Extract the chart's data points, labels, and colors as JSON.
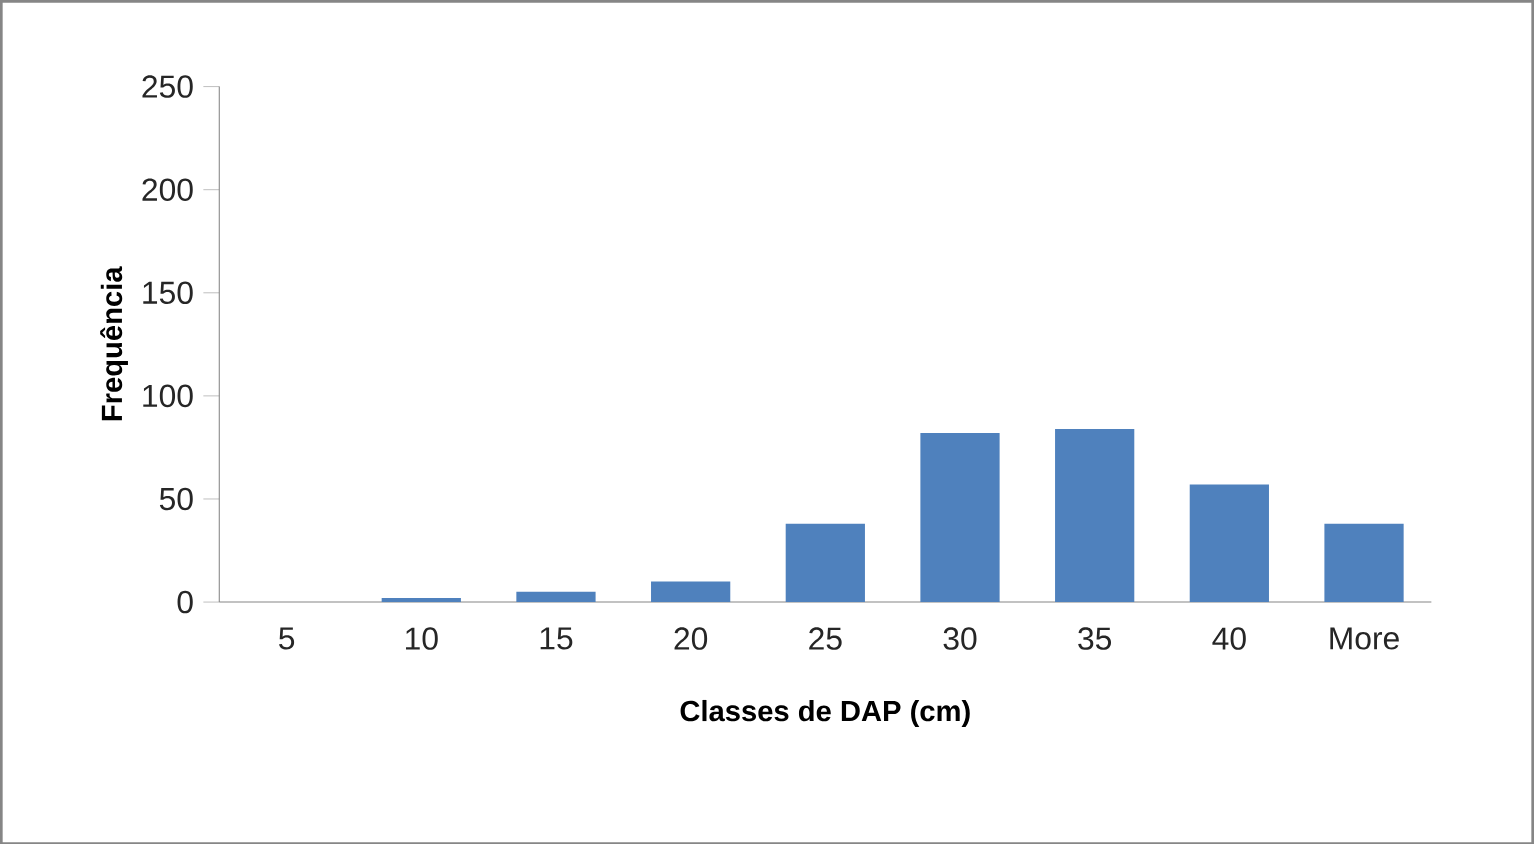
{
  "chart_data": {
    "type": "bar",
    "xlabel": "Classes de DAP (cm)",
    "ylabel": "Frequência",
    "categories": [
      "5",
      "10",
      "15",
      "20",
      "25",
      "30",
      "35",
      "40",
      "More"
    ],
    "values": [
      0,
      2,
      5,
      10,
      38,
      82,
      84,
      57,
      38
    ],
    "color": "#4f81bd",
    "ylim": [
      0,
      250
    ],
    "yticks": [
      0,
      50,
      100,
      150,
      200,
      250
    ],
    "grid": false
  }
}
